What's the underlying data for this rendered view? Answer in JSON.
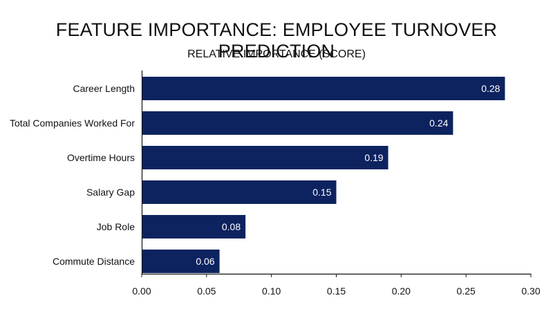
{
  "chart_data": {
    "type": "bar",
    "orientation": "horizontal",
    "title": "FEATURE IMPORTANCE: EMPLOYEE TURNOVER PREDICTION",
    "subtitle": "RELATIVE IMPORTANCE (SCORE)",
    "categories": [
      "Career Length",
      "Total Companies Worked For",
      "Overtime Hours",
      "Salary Gap",
      "Job Role",
      "Commute Distance"
    ],
    "values": [
      0.28,
      0.24,
      0.19,
      0.15,
      0.08,
      0.06
    ],
    "value_labels": [
      "0.28",
      "0.24",
      "0.19",
      "0.15",
      "0.08",
      "0.06"
    ],
    "xlim": [
      0.0,
      0.3
    ],
    "x_ticks": [
      "0.00",
      "0.05",
      "0.10",
      "0.15",
      "0.20",
      "0.25",
      "0.30"
    ],
    "grid": false,
    "bar_color": "#0d2360"
  }
}
